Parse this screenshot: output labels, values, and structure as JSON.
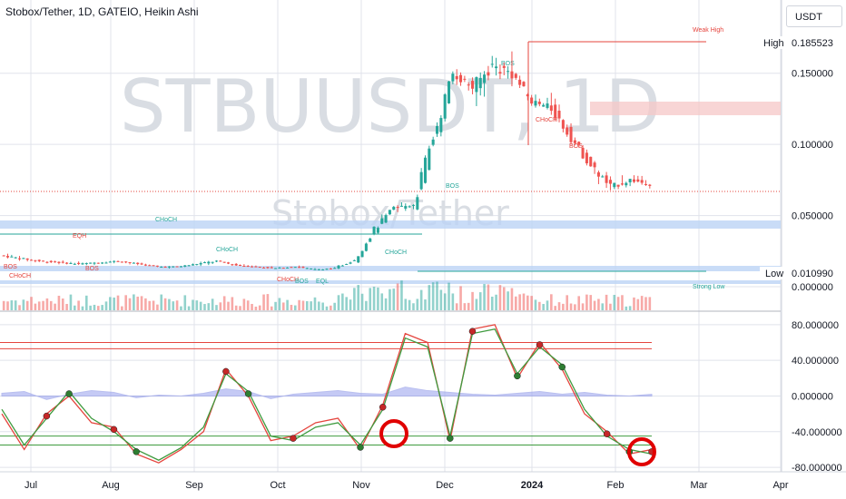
{
  "header": {
    "title": "Stobox/Tether, 1D, GATEIO, Heikin Ashi"
  },
  "currency_button": {
    "label": "USDT"
  },
  "watermark": {
    "symbol": "STBUUSDT, 1D",
    "name": "Stobox/Tether"
  },
  "colors": {
    "up": "#26a69a",
    "down": "#ef5350",
    "highlight": "#e00000",
    "osc_fast": "#e5453e",
    "osc_slow": "#3f9b3f",
    "zone": "#bcd3f5"
  },
  "chart_data": [
    {
      "type": "candlestick",
      "title": "Stobox/Tether, 1D, GATEIO, Heikin Ashi",
      "x": [
        "Jul",
        "Aug",
        "Sep",
        "Oct",
        "Nov",
        "Dec",
        "2024",
        "Feb",
        "Mar",
        "Apr"
      ],
      "y_ticks": [
        "0.150000",
        "0.100000",
        "0.050000",
        "0.000000"
      ],
      "ylim": [
        0,
        0.19
      ],
      "price_tags": [
        {
          "label": "High",
          "value": "0.185523"
        },
        {
          "label": "Low",
          "value": "0.010990"
        }
      ],
      "ohlc_weekly": [
        [
          0.022,
          0.025,
          0.018,
          0.02
        ],
        [
          0.02,
          0.022,
          0.016,
          0.018
        ],
        [
          0.018,
          0.02,
          0.015,
          0.017
        ],
        [
          0.017,
          0.019,
          0.014,
          0.016
        ],
        [
          0.016,
          0.018,
          0.014,
          0.017
        ],
        [
          0.017,
          0.02,
          0.015,
          0.018
        ],
        [
          0.018,
          0.019,
          0.014,
          0.016
        ],
        [
          0.016,
          0.017,
          0.013,
          0.014
        ],
        [
          0.014,
          0.016,
          0.012,
          0.014
        ],
        [
          0.014,
          0.017,
          0.013,
          0.016
        ],
        [
          0.016,
          0.02,
          0.014,
          0.018
        ],
        [
          0.018,
          0.019,
          0.014,
          0.015
        ],
        [
          0.015,
          0.017,
          0.013,
          0.014
        ],
        [
          0.014,
          0.016,
          0.012,
          0.013
        ],
        [
          0.013,
          0.015,
          0.012,
          0.014
        ],
        [
          0.014,
          0.016,
          0.011,
          0.012
        ],
        [
          0.012,
          0.014,
          0.011,
          0.013
        ],
        [
          0.013,
          0.02,
          0.012,
          0.019
        ],
        [
          0.019,
          0.042,
          0.018,
          0.04
        ],
        [
          0.04,
          0.06,
          0.038,
          0.055
        ],
        [
          0.055,
          0.065,
          0.048,
          0.058
        ],
        [
          0.058,
          0.11,
          0.055,
          0.105
        ],
        [
          0.105,
          0.155,
          0.1,
          0.15
        ],
        [
          0.15,
          0.16,
          0.13,
          0.14
        ],
        [
          0.14,
          0.165,
          0.12,
          0.155
        ],
        [
          0.155,
          0.185,
          0.14,
          0.15
        ],
        [
          0.15,
          0.155,
          0.125,
          0.13
        ],
        [
          0.13,
          0.145,
          0.115,
          0.125
        ],
        [
          0.125,
          0.135,
          0.1,
          0.105
        ],
        [
          0.105,
          0.11,
          0.08,
          0.085
        ],
        [
          0.085,
          0.09,
          0.06,
          0.07
        ],
        [
          0.07,
          0.085,
          0.065,
          0.075
        ],
        [
          0.075,
          0.08,
          0.068,
          0.072
        ]
      ],
      "levels": [
        {
          "label": "Weak High",
          "value": 0.185523
        },
        {
          "label": "Strong Low",
          "value": 0.01099
        }
      ],
      "annotations": [
        "CHoCH",
        "CHoCH",
        "CHoCH",
        "CHoCH",
        "CHoCH",
        "CHoCH",
        "BOS",
        "BOS",
        "BOS",
        "BOS",
        "BOS",
        "BOS",
        "EQH",
        "EQL",
        "Weak High",
        "Strong Low"
      ]
    },
    {
      "type": "line",
      "title": "",
      "y_ticks": [
        "80.000000",
        "40.000000",
        "0.000000",
        "-40.000000",
        "-80.000000"
      ],
      "ylim": [
        -85,
        90
      ],
      "series": [
        {
          "values": [
            -20,
            -60,
            -20,
            0,
            -30,
            -35,
            -65,
            -75,
            -60,
            -40,
            30,
            0,
            -50,
            -45,
            -30,
            -25,
            -60,
            -10,
            70,
            60,
            -50,
            75,
            80,
            20,
            60,
            30,
            -20,
            -40,
            -65,
            -60
          ]
        },
        {
          "values": [
            -15,
            -55,
            -25,
            5,
            -25,
            -40,
            -60,
            -72,
            -58,
            -35,
            25,
            5,
            -45,
            -50,
            -35,
            -30,
            -55,
            -15,
            65,
            55,
            -45,
            70,
            75,
            25,
            55,
            35,
            -15,
            -45,
            -60,
            -65
          ]
        }
      ],
      "histogram": [
        3,
        5,
        -4,
        2,
        6,
        4,
        -2,
        1,
        0,
        3,
        8,
        5,
        -3,
        2,
        4,
        6,
        3,
        2,
        10,
        6,
        4,
        2,
        1,
        3,
        5,
        2,
        4,
        1,
        0,
        2
      ],
      "levels": [
        60,
        53,
        -45,
        -55
      ]
    }
  ]
}
